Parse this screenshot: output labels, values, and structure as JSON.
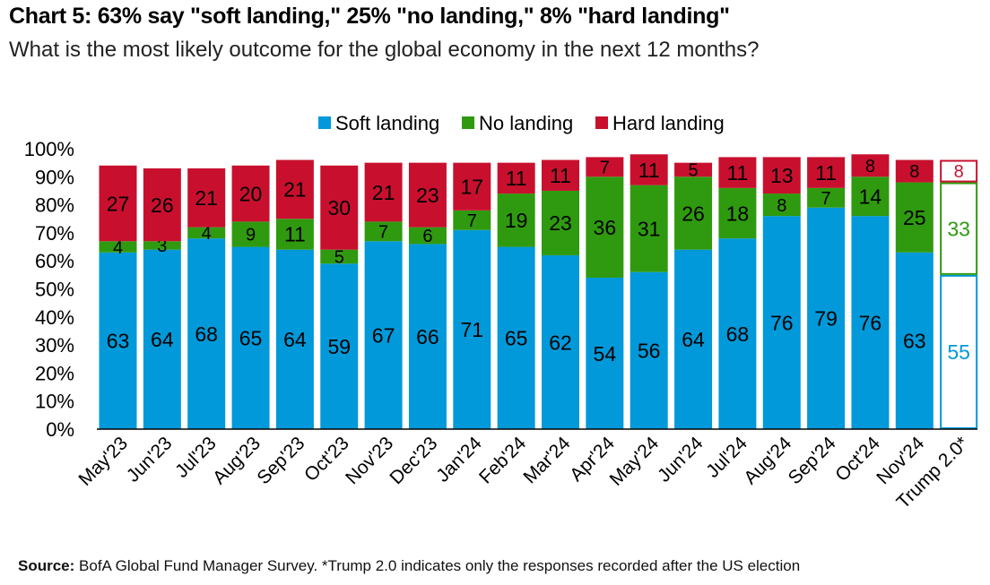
{
  "title": "Chart 5: 63% say \"soft landing,\" 25% \"no landing,\" 8% \"hard landing\"",
  "subtitle": "What is the most likely outcome for the global economy in the next 12 months?",
  "source_label": "Source:",
  "source_text": " BofA Global Fund Manager Survey. *Trump 2.0 indicates only the responses recorded after the US election",
  "colors": {
    "soft": "#0199d9",
    "no": "#2f9a0f",
    "hard": "#c8102e",
    "text": "#000000"
  },
  "chart_data": {
    "type": "bar",
    "stacked": true,
    "categories": [
      "May'23",
      "Jun'23",
      "Jul'23",
      "Aug'23",
      "Sep'23",
      "Oct'23",
      "Nov'23",
      "Dec'23",
      "Jan'24",
      "Feb'24",
      "Mar'24",
      "Apr'24",
      "May'24",
      "Jun'24",
      "Jul'24",
      "Aug'24",
      "Sep'24",
      "Oct'24",
      "Nov'24",
      "Trump 2.0*"
    ],
    "series": [
      {
        "name": "Soft landing",
        "values": [
          63,
          64,
          68,
          65,
          64,
          59,
          67,
          66,
          71,
          65,
          62,
          54,
          56,
          64,
          68,
          76,
          79,
          76,
          63,
          55
        ]
      },
      {
        "name": "No landing",
        "values": [
          4,
          3,
          4,
          9,
          11,
          5,
          7,
          6,
          7,
          19,
          23,
          36,
          31,
          26,
          18,
          8,
          7,
          14,
          25,
          33
        ]
      },
      {
        "name": "Hard landing",
        "values": [
          27,
          26,
          21,
          20,
          21,
          30,
          21,
          23,
          17,
          11,
          11,
          7,
          11,
          5,
          11,
          13,
          11,
          8,
          8,
          8
        ]
      }
    ],
    "outlined_categories": [
      "Trump 2.0*"
    ],
    "y_ticks": [
      "0%",
      "10%",
      "20%",
      "30%",
      "40%",
      "50%",
      "60%",
      "70%",
      "80%",
      "90%",
      "100%"
    ],
    "ylim": [
      0,
      100
    ],
    "legend_position": "top-center",
    "grid": false
  }
}
